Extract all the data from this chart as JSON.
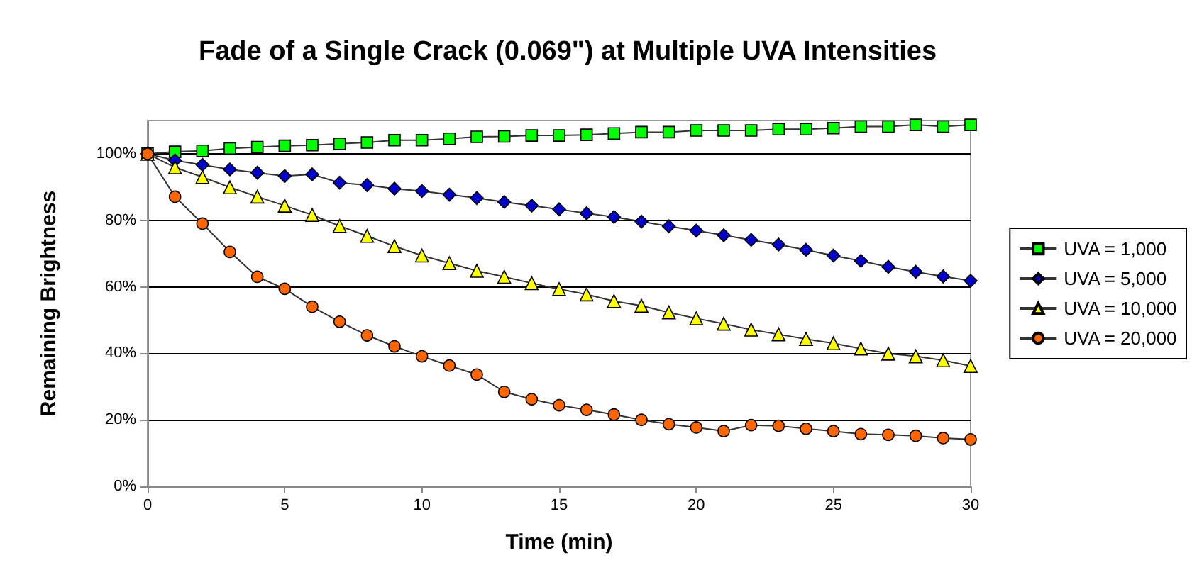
{
  "chart_data": {
    "type": "line",
    "title": "Fade of a Single Crack (0.069\") at Multiple UVA Intensities",
    "xlabel": "Time (min)",
    "ylabel": "Remaining Brightness",
    "x": [
      0,
      1,
      2,
      3,
      4,
      5,
      6,
      7,
      8,
      9,
      10,
      11,
      12,
      13,
      14,
      15,
      16,
      17,
      18,
      19,
      20,
      21,
      22,
      23,
      24,
      25,
      26,
      27,
      28,
      29,
      30
    ],
    "series": [
      {
        "name": "UVA = 1,000",
        "color": "#00ff00",
        "marker": "square",
        "values": [
          100,
          100.6,
          100.9,
          101.6,
          102,
          102.4,
          102.6,
          103,
          103.4,
          104.1,
          104.1,
          104.5,
          105.1,
          105.2,
          105.5,
          105.5,
          105.7,
          106.1,
          106.5,
          106.5,
          107,
          107,
          107,
          107.4,
          107.4,
          107.7,
          108.2,
          108.2,
          108.7,
          108.2,
          108.7
        ]
      },
      {
        "name": "UVA = 5,000",
        "color": "#0000cc",
        "marker": "diamond",
        "values": [
          100,
          98,
          96.7,
          95.3,
          94.3,
          93.3,
          93.8,
          91.3,
          90.6,
          89.5,
          88.8,
          87.7,
          86.7,
          85.5,
          84.4,
          83.3,
          82.1,
          81,
          79.6,
          78.2,
          76.9,
          75.5,
          74.1,
          72.7,
          71.1,
          69.4,
          67.8,
          66,
          64.5,
          63.1,
          61.8
        ]
      },
      {
        "name": "UVA = 10,000",
        "color": "#ffff00",
        "marker": "triangle",
        "values": [
          100,
          95.9,
          93,
          89.9,
          87.1,
          84.4,
          81.6,
          78.3,
          75.3,
          72.2,
          69.4,
          67.1,
          64.8,
          63,
          61.1,
          59.3,
          57.7,
          55.7,
          54.3,
          52.3,
          50.5,
          48.9,
          47.1,
          45.7,
          44.3,
          43,
          41.4,
          39.9,
          39.1,
          37.9,
          36.2
        ]
      },
      {
        "name": "UVA = 20,000",
        "color": "#ff6600",
        "marker": "circle",
        "values": [
          100,
          87.1,
          79,
          70.5,
          63,
          59.4,
          54,
          49.5,
          45.4,
          42.1,
          39.1,
          36.3,
          33.6,
          28.4,
          26.2,
          24.4,
          23,
          21.6,
          20,
          18.7,
          17.7,
          16.6,
          18.4,
          18.2,
          17.3,
          16.6,
          15.7,
          15.5,
          15.2,
          14.5,
          14.1
        ]
      }
    ],
    "xlim": [
      0,
      30
    ],
    "xticks": [
      0,
      5,
      10,
      15,
      20,
      25,
      30
    ],
    "ylim": [
      0,
      110
    ],
    "yticks": [
      {
        "value": 0,
        "label": "0%"
      },
      {
        "value": 20,
        "label": "20%"
      },
      {
        "value": 40,
        "label": "40%"
      },
      {
        "value": 60,
        "label": "60%"
      },
      {
        "value": 80,
        "label": "80%"
      },
      {
        "value": 100,
        "label": "100%"
      }
    ],
    "grid": "y",
    "legend": "right",
    "line_style": "solid"
  }
}
